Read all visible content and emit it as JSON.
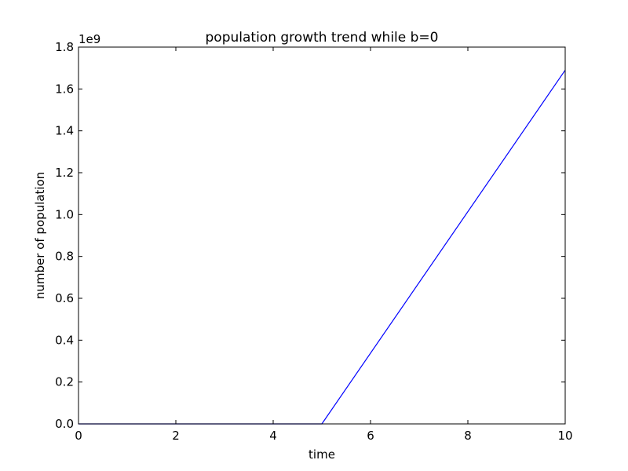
{
  "chart_data": {
    "type": "line",
    "title": "population growth trend while b=0",
    "xlabel": "time",
    "ylabel": "number of population",
    "y_offset_label": "1e9",
    "xlim": [
      0,
      10
    ],
    "ylim": [
      0,
      1.8
    ],
    "x_ticks": [
      0,
      2,
      4,
      6,
      8,
      10
    ],
    "x_tick_labels": [
      "0",
      "2",
      "4",
      "6",
      "8",
      "10"
    ],
    "y_ticks": [
      0,
      0.2,
      0.4,
      0.6,
      0.8,
      1.0,
      1.2,
      1.4,
      1.6,
      1.8
    ],
    "y_tick_labels": [
      "0.0",
      "0.2",
      "0.4",
      "0.6",
      "0.8",
      "1.0",
      "1.2",
      "1.4",
      "1.6",
      "1.8"
    ],
    "grid": false,
    "series": [
      {
        "color": "#0000ff",
        "x": [
          0,
          5,
          10
        ],
        "y": [
          0,
          0,
          1.69
        ]
      }
    ]
  }
}
